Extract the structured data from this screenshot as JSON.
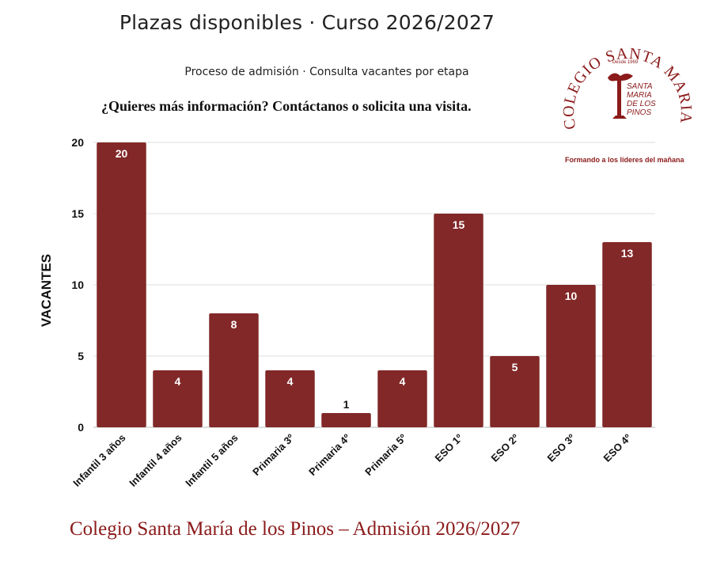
{
  "header": {
    "title": "Plazas disponibles · Curso 2026/2027",
    "subtitle": "Proceso de admisión · Consulta vacantes por etapa",
    "cta": "¿Quieres más información? Contáctanos o solicita una visita."
  },
  "footer": {
    "text": "Colegio Santa María de los Pinos – Admisión 2026/2027"
  },
  "logo": {
    "ring_text": "COLEGIO SANTA MARIA DE LOS PINOS",
    "since": "Desde 1969",
    "inner_lines": [
      "SANTA",
      "MARIA",
      "DE LOS",
      "PINOS"
    ],
    "tagline": "Formando a los líderes del mañana",
    "color": "#8b1a1a"
  },
  "chart_data": {
    "type": "bar",
    "title": "Plazas disponibles · Curso 2026/2027",
    "ylabel": "VACANTES",
    "xlabel": "",
    "categories": [
      "Infantil 3 años",
      "Infantil 4 años",
      "Infantil 5 años",
      "Primaria 3º",
      "Primaria 4º",
      "Primaria 5º",
      "ESO 1º",
      "ESO 2º",
      "ESO 3º",
      "ESO 4º"
    ],
    "values": [
      20,
      4,
      8,
      4,
      1,
      4,
      15,
      5,
      10,
      13
    ],
    "ylim": [
      0,
      20
    ],
    "yticks": [
      0,
      5,
      10,
      15,
      20
    ],
    "grid": true,
    "bar_color": "#822828"
  }
}
